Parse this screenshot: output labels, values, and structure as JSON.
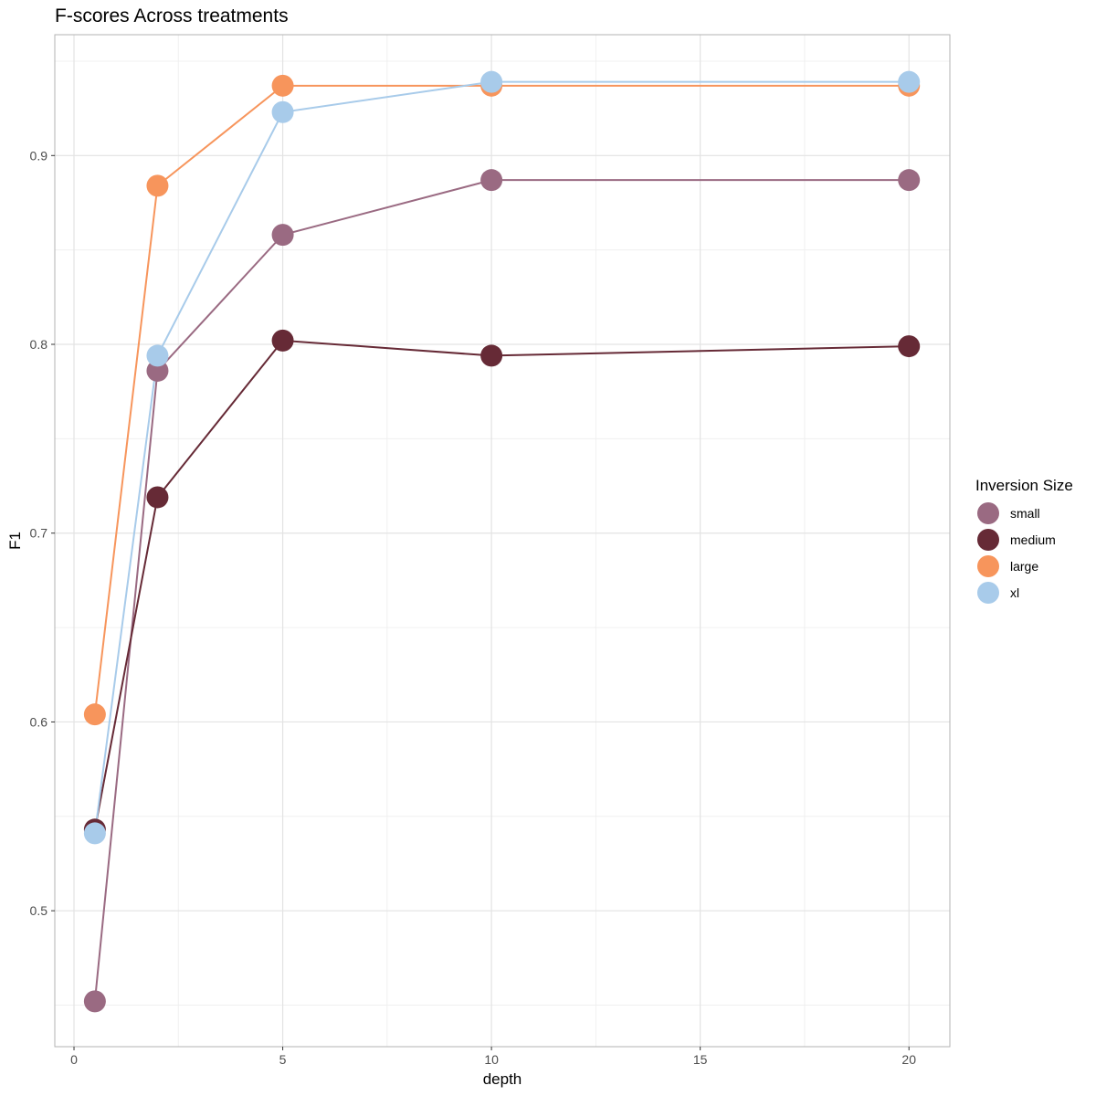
{
  "chart_data": {
    "type": "line",
    "title": "F-scores Across treatments",
    "xlabel": "depth",
    "ylabel": "F1",
    "xlim": [
      -0.46,
      20.98
    ],
    "ylim": [
      0.428,
      0.964
    ],
    "x_ticks": [
      0,
      5,
      10,
      15,
      20
    ],
    "x_tick_labels": [
      "0",
      "5",
      "10",
      "15",
      "20"
    ],
    "y_ticks": [
      0.5,
      0.6,
      0.7,
      0.8,
      0.9
    ],
    "y_tick_labels": [
      "0.5",
      "0.6",
      "0.7",
      "0.8",
      "0.9"
    ],
    "grid": true,
    "legend": {
      "title": "Inversion Size",
      "placement": "right"
    },
    "x": [
      0.5,
      2,
      5,
      10,
      20
    ],
    "series": [
      {
        "name": "small",
        "color": "#9a6a82",
        "values": [
          0.452,
          0.786,
          0.858,
          0.887,
          0.887
        ]
      },
      {
        "name": "medium",
        "color": "#662a36",
        "values": [
          0.543,
          0.719,
          0.802,
          0.794,
          0.799
        ]
      },
      {
        "name": "large",
        "color": "#f7955c",
        "values": [
          0.604,
          0.884,
          0.937,
          0.937,
          0.937
        ]
      },
      {
        "name": "xl",
        "color": "#a8cbea",
        "values": [
          0.541,
          0.794,
          0.923,
          0.939,
          0.939
        ]
      }
    ]
  }
}
